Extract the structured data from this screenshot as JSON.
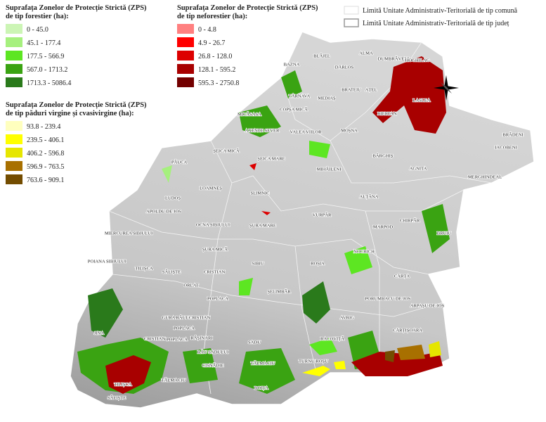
{
  "legends": [
    {
      "title_lines": [
        "Suprafața Zonelor de Protecție Strictă (ZPS)",
        "de tip forestier (ha):"
      ],
      "items": [
        {
          "label": "0 - 45.0",
          "color": "#ccf5b5"
        },
        {
          "label": "45.1 - 177.4",
          "color": "#a6f07e"
        },
        {
          "label": "177.5 - 566.9",
          "color": "#5de622"
        },
        {
          "label": "567.0 - 1713.2",
          "color": "#3aa312"
        },
        {
          "label": "1713.3 - 5086.4",
          "color": "#2a7a1b"
        }
      ]
    },
    {
      "title_lines": [
        "Suprafața Zonelor de Protecție Strictă (ZPS)",
        "de tip neforestier (ha):"
      ],
      "items": [
        {
          "label": "0 - 4.8",
          "color": "#ff8080"
        },
        {
          "label": "4.9 - 26.7",
          "color": "#ff0000"
        },
        {
          "label": "26.8 - 128.0",
          "color": "#dd0000"
        },
        {
          "label": "128.1 - 595.2",
          "color": "#a80000"
        },
        {
          "label": "595.3 - 2750.8",
          "color": "#730000"
        }
      ]
    },
    {
      "title_lines": [
        "Suprafața Zonelor de Protecție Strictă (ZPS)",
        "de tip păduri virgine și cvasivirgine (ha):"
      ],
      "items": [
        {
          "label": "93.8 - 239.4",
          "color": "#ffffbe"
        },
        {
          "label": "239.5 - 406.1",
          "color": "#ffff00"
        },
        {
          "label": "406.2 - 596.8",
          "color": "#e6e600"
        },
        {
          "label": "596.9 - 763.5",
          "color": "#a87000"
        },
        {
          "label": "763.6 - 909.1",
          "color": "#734c00"
        }
      ]
    }
  ],
  "boundaries": [
    "Limită Unitate Administrativ-Teritorială de tip comună",
    "Limită Unitate Administrativ-Teritorială de tip județ"
  ],
  "places": [
    "BAZNA",
    "BLĂJEL",
    "ALMA",
    "DÂRLOS",
    "DUMBRĂVENI",
    "HOGHILAG",
    "TÂRNAVA",
    "MEDIAȘ",
    "BRATEIU",
    "AȚEL",
    "LASLEA",
    "MICĂSASA",
    "COPȘA MICĂ",
    "BIERTAN",
    "AXENTE SEVER",
    "VALEA VIILOR",
    "MOȘNA",
    "BRĂDENI",
    "ȘEICA MICĂ",
    "ȘEICA MARE",
    "BÂRGHIȘ",
    "IACOBENI",
    "AGNITA",
    "MERGHINDEAL",
    "MIHĂILENI",
    "PĂUCA",
    "LOAMNEȘ",
    "LUDOȘ",
    "SLIMNIC",
    "ALȚÂNA",
    "APOLDU DE JOS",
    "VURPĂR",
    "CHIRPĂR",
    "OCNA SIBIULUI",
    "ȘURA MARE",
    "MARPOD",
    "MIERCUREA SIBIULUI",
    "BRUIU",
    "ȘURA MICĂ",
    "NOCRICH",
    "POIANA SIBIULUI",
    "TILIȘCA",
    "SĂLIȘTE",
    "CRISTIAN",
    "SIBIU",
    "ROȘIA",
    "CÂRȚA",
    "ORLAT",
    "ȘELIMBĂR",
    "POPLACA",
    "PORUMBACU DE JOS",
    "ARPAȘU DE JOS",
    "GURA RÂULUI",
    "CRISTIAN",
    "POPLACA",
    "CRISTIAN",
    "POPLACA",
    "RĂȘINARI",
    "JINA",
    "AVRIG",
    "CÂRȚIȘOARA",
    "SADU",
    "RACOVIȚĂ",
    "RĂU SADULUI",
    "TURNU ROȘU",
    "TĂLMACIU",
    "CISNĂDIE",
    "TILIȘCA",
    "TĂLMACIU",
    "BOIȚA",
    "SĂLIȘTE"
  ]
}
